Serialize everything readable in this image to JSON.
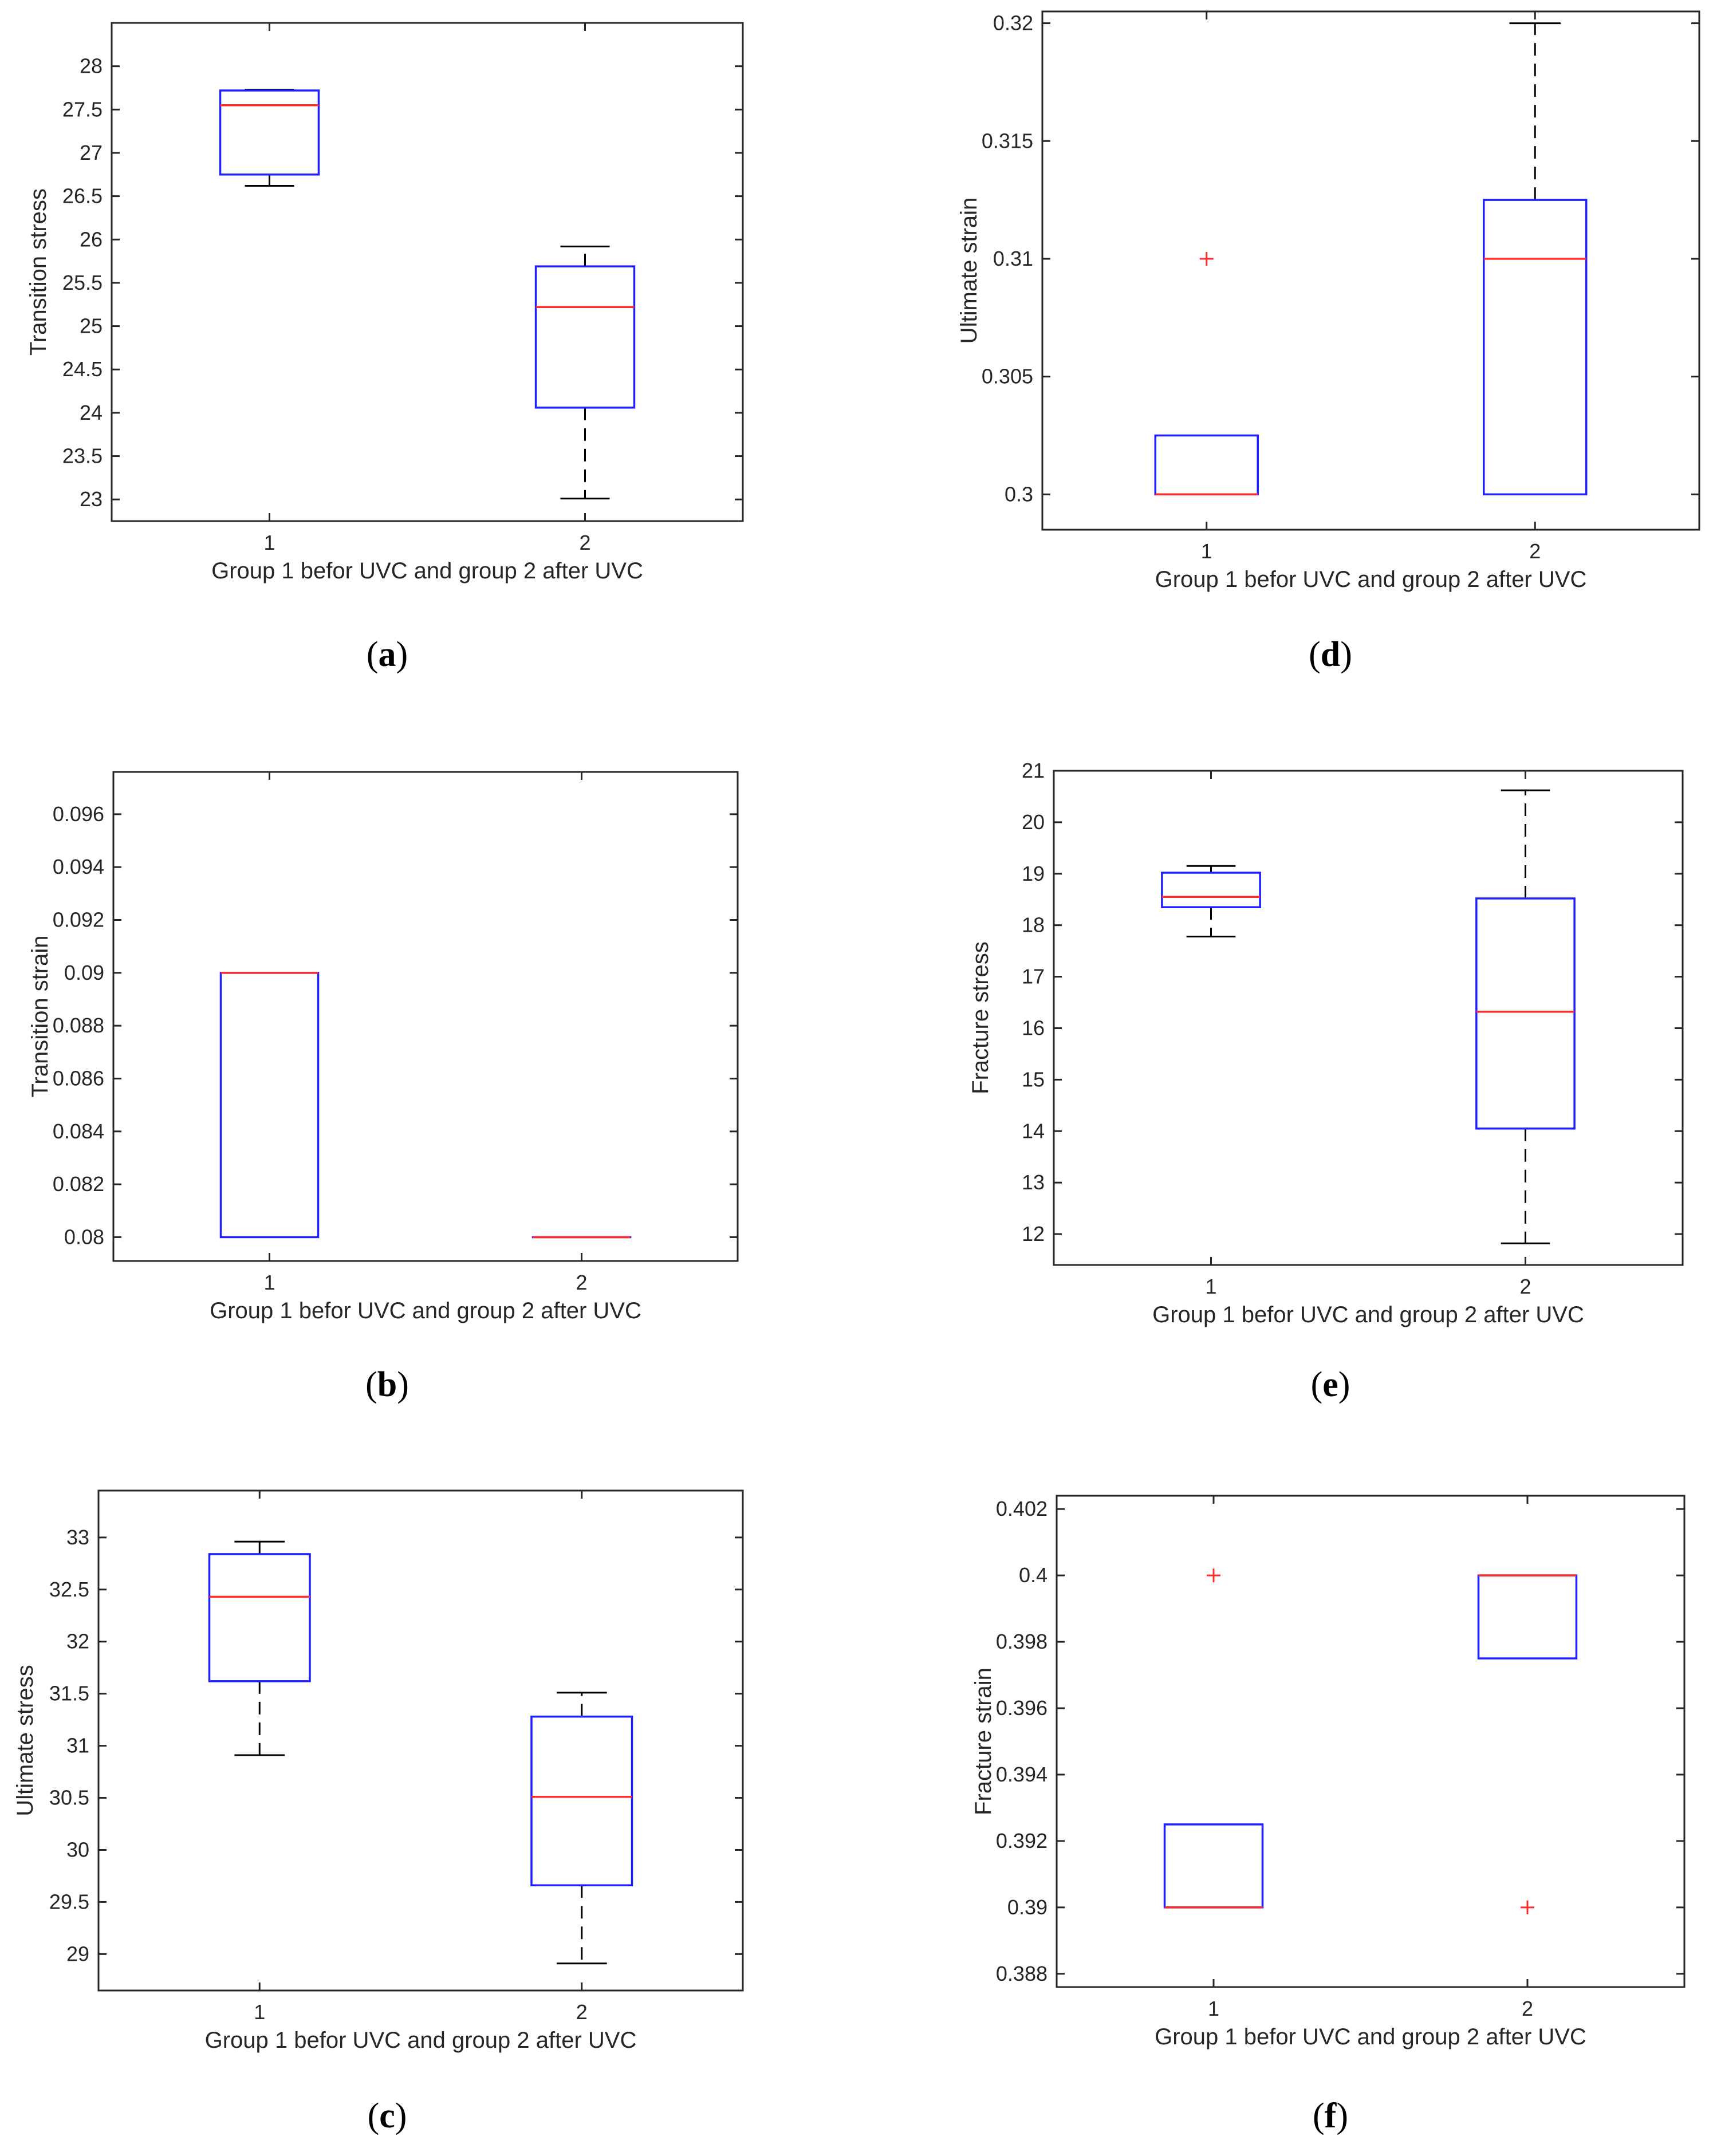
{
  "chart_data": [
    {
      "type": "boxplot",
      "panel_label": "a",
      "ylabel": "Transition stress",
      "xlabel": "Group 1 befor UVC and group 2 after UVC",
      "categories": [
        "1",
        "2"
      ],
      "ylim": [
        22.75,
        28.5
      ],
      "yticks": [
        23,
        23.5,
        24,
        24.5,
        25,
        25.5,
        26,
        26.5,
        27,
        27.5,
        28
      ],
      "ytick_labels": [
        "23",
        "23.5",
        "24",
        "24.5",
        "25",
        "25.5",
        "26",
        "26.5",
        "27",
        "27.5",
        "28"
      ],
      "boxes": [
        {
          "q1": 26.75,
          "median": 27.55,
          "q3": 27.72,
          "whisker_low": 26.62,
          "whisker_high": 27.73,
          "outliers": []
        },
        {
          "q1": 24.06,
          "median": 25.22,
          "q3": 25.69,
          "whisker_low": 23.01,
          "whisker_high": 25.92,
          "outliers": []
        }
      ]
    },
    {
      "type": "boxplot",
      "panel_label": "d",
      "ylabel": "Ultimate strain",
      "xlabel": "Group 1 befor UVC and group 2 after UVC",
      "categories": [
        "1",
        "2"
      ],
      "ylim": [
        0.2985,
        0.3205
      ],
      "yticks": [
        0.3,
        0.305,
        0.31,
        0.315,
        0.32
      ],
      "ytick_labels": [
        "0.3",
        "0.305",
        "0.31",
        "0.315",
        "0.32"
      ],
      "boxes": [
        {
          "q1": 0.3,
          "median": 0.3,
          "q3": 0.3025,
          "whisker_low": 0.3,
          "whisker_high": 0.3025,
          "outliers": [
            0.31
          ]
        },
        {
          "q1": 0.3,
          "median": 0.31,
          "q3": 0.3125,
          "whisker_low": 0.3,
          "whisker_high": 0.32,
          "outliers": []
        }
      ]
    },
    {
      "type": "boxplot",
      "panel_label": "b",
      "ylabel": "Transition strain",
      "xlabel": "Group 1 befor UVC and group 2 after UVC",
      "categories": [
        "1",
        "2"
      ],
      "ylim": [
        0.0791,
        0.0976
      ],
      "yticks": [
        0.08,
        0.082,
        0.084,
        0.086,
        0.088,
        0.09,
        0.092,
        0.094,
        0.096
      ],
      "ytick_labels": [
        "0.08",
        "0.082",
        "0.084",
        "0.086",
        "0.088",
        "0.09",
        "0.092",
        "0.094",
        "0.096"
      ],
      "boxes": [
        {
          "q1": 0.08,
          "median": 0.09,
          "q3": 0.09,
          "whisker_low": 0.08,
          "whisker_high": 0.09,
          "outliers": []
        },
        {
          "q1": 0.08,
          "median": 0.08,
          "q3": 0.08,
          "whisker_low": 0.08,
          "whisker_high": 0.08,
          "outliers": []
        }
      ]
    },
    {
      "type": "boxplot",
      "panel_label": "e",
      "ylabel": "Fracture stress",
      "xlabel": "Group 1 befor UVC and group 2 after UVC",
      "categories": [
        "1",
        "2"
      ],
      "ylim": [
        11.4,
        21.0
      ],
      "yticks": [
        12,
        13,
        14,
        15,
        16,
        17,
        18,
        19,
        20,
        21
      ],
      "ytick_labels": [
        "12",
        "13",
        "14",
        "15",
        "16",
        "17",
        "18",
        "19",
        "20",
        "21"
      ],
      "boxes": [
        {
          "q1": 18.35,
          "median": 18.55,
          "q3": 19.02,
          "whisker_low": 17.78,
          "whisker_high": 19.15,
          "outliers": []
        },
        {
          "q1": 14.05,
          "median": 16.32,
          "q3": 18.52,
          "whisker_low": 11.82,
          "whisker_high": 20.62,
          "outliers": []
        }
      ]
    },
    {
      "type": "boxplot",
      "panel_label": "c",
      "ylabel": "Ultimate stress",
      "xlabel": "Group 1 befor UVC and group 2 after UVC",
      "categories": [
        "1",
        "2"
      ],
      "ylim": [
        28.65,
        33.45
      ],
      "yticks": [
        29,
        29.5,
        30,
        30.5,
        31,
        31.5,
        32,
        32.5,
        33
      ],
      "ytick_labels": [
        "29",
        "29.5",
        "30",
        "30.5",
        "31",
        "31.5",
        "32",
        "32.5",
        "33"
      ],
      "boxes": [
        {
          "q1": 31.62,
          "median": 32.43,
          "q3": 32.84,
          "whisker_low": 30.91,
          "whisker_high": 32.96,
          "outliers": []
        },
        {
          "q1": 29.66,
          "median": 30.51,
          "q3": 31.28,
          "whisker_low": 28.91,
          "whisker_high": 31.51,
          "outliers": []
        }
      ]
    },
    {
      "type": "boxplot",
      "panel_label": "f",
      "ylabel": "Fracture strain",
      "xlabel": "Group 1 befor UVC and group 2 after UVC",
      "categories": [
        "1",
        "2"
      ],
      "ylim": [
        0.3876,
        0.4024
      ],
      "yticks": [
        0.388,
        0.39,
        0.392,
        0.394,
        0.396,
        0.398,
        0.4,
        0.402
      ],
      "ytick_labels": [
        "0.388",
        "0.39",
        "0.392",
        "0.394",
        "0.396",
        "0.398",
        "0.4",
        "0.402"
      ],
      "boxes": [
        {
          "q1": 0.39,
          "median": 0.39,
          "q3": 0.3925,
          "whisker_low": 0.39,
          "whisker_high": 0.3925,
          "outliers": [
            0.4
          ]
        },
        {
          "q1": 0.3975,
          "median": 0.4,
          "q3": 0.4,
          "whisker_low": 0.3975,
          "whisker_high": 0.4,
          "outliers": [
            0.39
          ]
        }
      ]
    }
  ]
}
